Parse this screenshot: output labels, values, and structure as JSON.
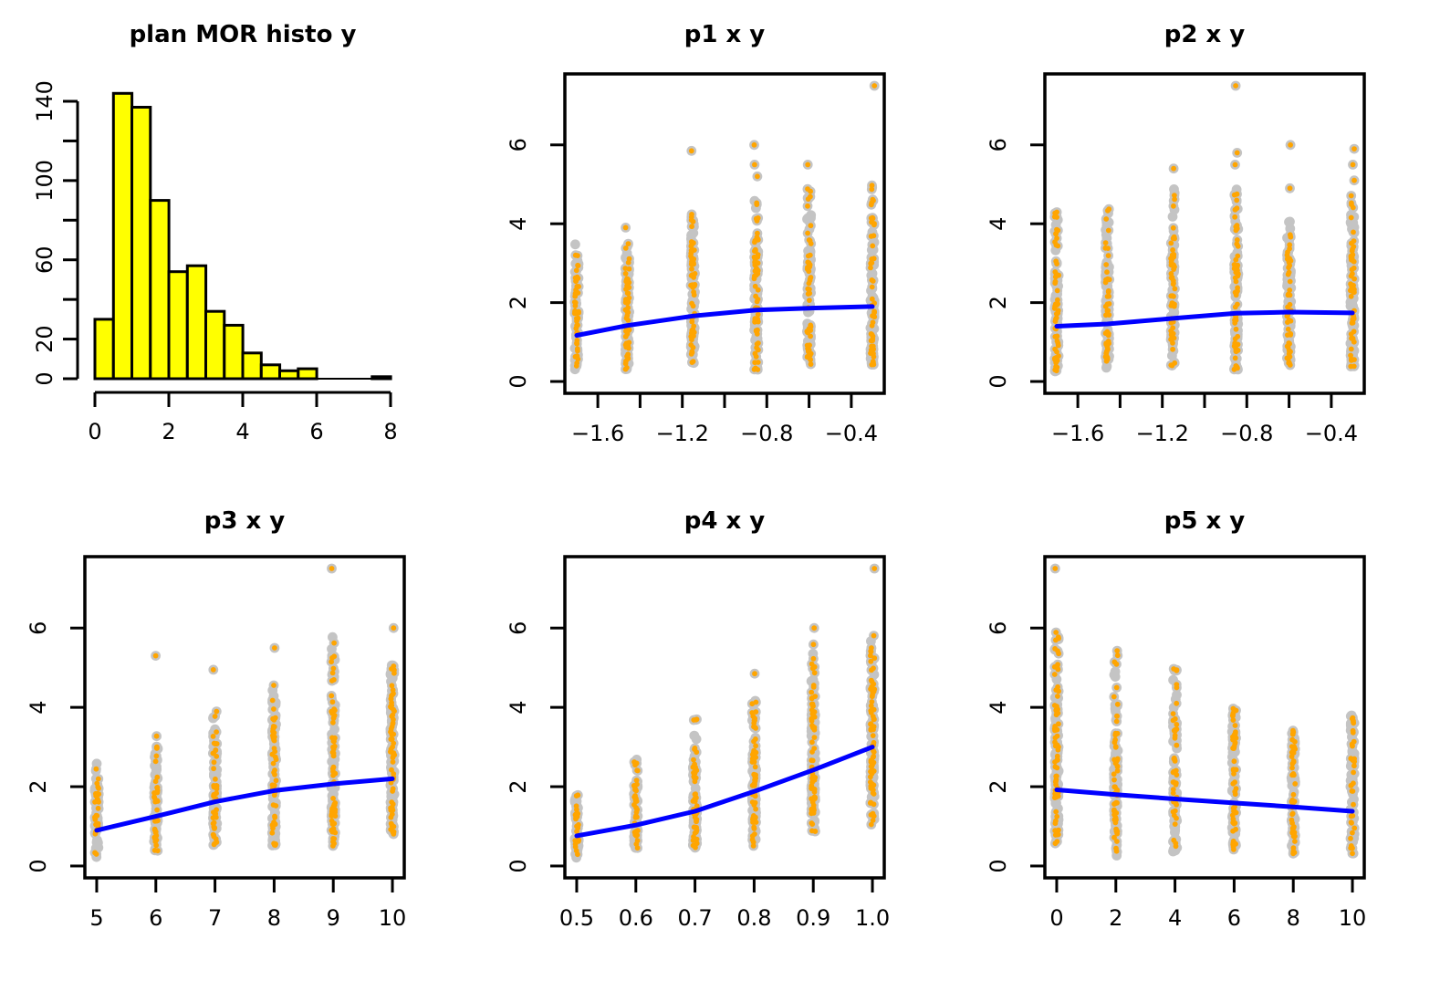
{
  "figure": {
    "title": "R plot grid: histogram and five jitter-strip scatter plots with loess lines",
    "background": "#ffffff",
    "colors": {
      "bar_fill": "#ffff00",
      "bar_border": "#000000",
      "point_outer": "#c4c4c4",
      "point_inner": "#ffa500",
      "trend_line": "#0000ff",
      "axis": "#000000"
    }
  },
  "chart_data": [
    {
      "type": "bar",
      "id": "hist",
      "title": "plan MOR histo y",
      "bin_start": 0,
      "bin_width": 0.5,
      "counts": [
        30,
        144,
        137,
        90,
        54,
        57,
        34,
        27,
        13,
        7,
        4,
        5,
        0,
        0,
        0,
        1
      ],
      "xlim": [
        0,
        8
      ],
      "ylim": [
        0,
        140
      ],
      "grid": false,
      "x_ticks": [
        {
          "v": 0,
          "label": "0"
        },
        {
          "v": 2,
          "label": "2"
        },
        {
          "v": 4,
          "label": "4"
        },
        {
          "v": 6,
          "label": "6"
        },
        {
          "v": 8,
          "label": "8"
        }
      ],
      "y_ticks": [
        {
          "v": 0,
          "label": "0"
        },
        {
          "v": 20,
          "label": "20"
        },
        {
          "v": 40,
          "label": ""
        },
        {
          "v": 60,
          "label": "60"
        },
        {
          "v": 80,
          "label": ""
        },
        {
          "v": 100,
          "label": "100"
        },
        {
          "v": 120,
          "label": ""
        },
        {
          "v": 140,
          "label": "140"
        }
      ]
    },
    {
      "type": "scatter",
      "id": "p1",
      "title": "p1 x y",
      "seed": 11,
      "x_usr": [
        -1.756,
        -0.244
      ],
      "y_usr": [
        -0.3,
        7.8
      ],
      "grid": false,
      "x_ticks": [
        {
          "v": -1.6,
          "label": "−1.6"
        },
        {
          "v": -1.4,
          "label": ""
        },
        {
          "v": -1.2,
          "label": "−1.2"
        },
        {
          "v": -1.0,
          "label": ""
        },
        {
          "v": -0.8,
          "label": "−0.8"
        },
        {
          "v": -0.6,
          "label": ""
        },
        {
          "v": -0.4,
          "label": "−0.4"
        }
      ],
      "y_ticks": [
        {
          "v": 0,
          "label": "0"
        },
        {
          "v": 2,
          "label": "2"
        },
        {
          "v": 4,
          "label": "4"
        },
        {
          "v": 6,
          "label": "6"
        }
      ],
      "strips": [
        {
          "x": -1.7,
          "n": 80,
          "y_min": 0.25,
          "y_dense_max": 2.6,
          "y_max": 3.5,
          "outliers": []
        },
        {
          "x": -1.46,
          "n": 88,
          "y_min": 0.3,
          "y_dense_max": 2.7,
          "y_max": 4.0,
          "outliers": []
        },
        {
          "x": -1.15,
          "n": 108,
          "y_min": 0.45,
          "y_dense_max": 3.1,
          "y_max": 4.25,
          "outliers": [
            5.85
          ]
        },
        {
          "x": -0.85,
          "n": 108,
          "y_min": 0.3,
          "y_dense_max": 3.2,
          "y_max": 4.6,
          "outliers": [
            5.2,
            5.5,
            6.0
          ]
        },
        {
          "x": -0.6,
          "n": 102,
          "y_min": 0.3,
          "y_dense_max": 3.3,
          "y_max": 4.9,
          "outliers": [
            5.5
          ]
        },
        {
          "x": -0.3,
          "n": 105,
          "y_min": 0.4,
          "y_dense_max": 3.4,
          "y_max": 5.3,
          "outliers": [
            7.5
          ]
        }
      ],
      "loess": [
        [
          -1.7,
          1.17
        ],
        [
          -1.46,
          1.42
        ],
        [
          -1.15,
          1.66
        ],
        [
          -0.85,
          1.81
        ],
        [
          -0.6,
          1.86
        ],
        [
          -0.3,
          1.9
        ]
      ]
    },
    {
      "type": "scatter",
      "id": "p2",
      "title": "p2 x y",
      "seed": 22,
      "x_usr": [
        -1.756,
        -0.244
      ],
      "y_usr": [
        -0.3,
        7.8
      ],
      "grid": false,
      "x_ticks": [
        {
          "v": -1.6,
          "label": "−1.6"
        },
        {
          "v": -1.4,
          "label": ""
        },
        {
          "v": -1.2,
          "label": "−1.2"
        },
        {
          "v": -1.0,
          "label": ""
        },
        {
          "v": -0.8,
          "label": "−0.8"
        },
        {
          "v": -0.6,
          "label": ""
        },
        {
          "v": -0.4,
          "label": "−0.4"
        }
      ],
      "y_ticks": [
        {
          "v": 0,
          "label": "0"
        },
        {
          "v": 2,
          "label": "2"
        },
        {
          "v": 4,
          "label": "4"
        },
        {
          "v": 6,
          "label": "6"
        }
      ],
      "strips": [
        {
          "x": -1.7,
          "n": 95,
          "y_min": 0.25,
          "y_dense_max": 3.0,
          "y_max": 4.6,
          "outliers": []
        },
        {
          "x": -1.46,
          "n": 90,
          "y_min": 0.3,
          "y_dense_max": 3.0,
          "y_max": 4.4,
          "outliers": []
        },
        {
          "x": -1.15,
          "n": 100,
          "y_min": 0.35,
          "y_dense_max": 3.2,
          "y_max": 4.95,
          "outliers": [
            5.4
          ]
        },
        {
          "x": -0.85,
          "n": 110,
          "y_min": 0.3,
          "y_dense_max": 3.6,
          "y_max": 4.9,
          "outliers": [
            5.5,
            5.8,
            7.5
          ]
        },
        {
          "x": -0.6,
          "n": 95,
          "y_min": 0.4,
          "y_dense_max": 3.1,
          "y_max": 4.1,
          "outliers": [
            4.9,
            6.0
          ]
        },
        {
          "x": -0.3,
          "n": 105,
          "y_min": 0.35,
          "y_dense_max": 3.4,
          "y_max": 4.75,
          "outliers": [
            5.1,
            5.5,
            5.9
          ]
        }
      ],
      "loess": [
        [
          -1.7,
          1.4
        ],
        [
          -1.46,
          1.46
        ],
        [
          -1.15,
          1.6
        ],
        [
          -0.85,
          1.73
        ],
        [
          -0.6,
          1.76
        ],
        [
          -0.3,
          1.74
        ]
      ]
    },
    {
      "type": "scatter",
      "id": "p3",
      "title": "p3 x y",
      "seed": 33,
      "x_usr": [
        4.8,
        10.2
      ],
      "y_usr": [
        -0.3,
        7.8
      ],
      "grid": false,
      "x_ticks": [
        {
          "v": 5,
          "label": "5"
        },
        {
          "v": 6,
          "label": "6"
        },
        {
          "v": 7,
          "label": "7"
        },
        {
          "v": 8,
          "label": "8"
        },
        {
          "v": 9,
          "label": "9"
        },
        {
          "v": 10,
          "label": "10"
        }
      ],
      "y_ticks": [
        {
          "v": 0,
          "label": "0"
        },
        {
          "v": 2,
          "label": "2"
        },
        {
          "v": 4,
          "label": "4"
        },
        {
          "v": 6,
          "label": "6"
        }
      ],
      "strips": [
        {
          "x": 5,
          "n": 60,
          "y_min": 0.2,
          "y_dense_max": 1.9,
          "y_max": 2.6,
          "outliers": []
        },
        {
          "x": 6,
          "n": 80,
          "y_min": 0.35,
          "y_dense_max": 2.5,
          "y_max": 3.3,
          "outliers": [
            5.3
          ]
        },
        {
          "x": 7,
          "n": 95,
          "y_min": 0.45,
          "y_dense_max": 3.0,
          "y_max": 3.9,
          "outliers": [
            4.95
          ]
        },
        {
          "x": 8,
          "n": 110,
          "y_min": 0.5,
          "y_dense_max": 3.5,
          "y_max": 4.6,
          "outliers": [
            5.5
          ]
        },
        {
          "x": 9,
          "n": 115,
          "y_min": 0.5,
          "y_dense_max": 3.9,
          "y_max": 5.9,
          "outliers": [
            7.5
          ]
        },
        {
          "x": 10,
          "n": 125,
          "y_min": 0.8,
          "y_dense_max": 4.0,
          "y_max": 5.1,
          "outliers": [
            6.0
          ]
        }
      ],
      "loess": [
        [
          5,
          0.9
        ],
        [
          6,
          1.25
        ],
        [
          7,
          1.62
        ],
        [
          8,
          1.9
        ],
        [
          9,
          2.07
        ],
        [
          10,
          2.2
        ]
      ]
    },
    {
      "type": "scatter",
      "id": "p4",
      "title": "p4 x y",
      "seed": 44,
      "x_usr": [
        0.48,
        1.02
      ],
      "y_usr": [
        -0.3,
        7.8
      ],
      "grid": false,
      "x_ticks": [
        {
          "v": 0.5,
          "label": "0.5"
        },
        {
          "v": 0.6,
          "label": "0.6"
        },
        {
          "v": 0.7,
          "label": "0.7"
        },
        {
          "v": 0.8,
          "label": "0.8"
        },
        {
          "v": 0.9,
          "label": "0.9"
        },
        {
          "v": 1.0,
          "label": "1.0"
        }
      ],
      "y_ticks": [
        {
          "v": 0,
          "label": "0"
        },
        {
          "v": 2,
          "label": "2"
        },
        {
          "v": 4,
          "label": "4"
        },
        {
          "v": 6,
          "label": "6"
        }
      ],
      "strips": [
        {
          "x": 0.5,
          "n": 50,
          "y_min": 0.2,
          "y_dense_max": 1.5,
          "y_max": 1.9,
          "outliers": []
        },
        {
          "x": 0.6,
          "n": 70,
          "y_min": 0.4,
          "y_dense_max": 2.0,
          "y_max": 2.7,
          "outliers": []
        },
        {
          "x": 0.7,
          "n": 95,
          "y_min": 0.45,
          "y_dense_max": 2.4,
          "y_max": 3.75,
          "outliers": []
        },
        {
          "x": 0.8,
          "n": 115,
          "y_min": 0.5,
          "y_dense_max": 3.0,
          "y_max": 4.2,
          "outliers": [
            4.85
          ]
        },
        {
          "x": 0.9,
          "n": 125,
          "y_min": 0.8,
          "y_dense_max": 3.9,
          "y_max": 5.6,
          "outliers": [
            6.0
          ]
        },
        {
          "x": 1.0,
          "n": 130,
          "y_min": 1.0,
          "y_dense_max": 4.4,
          "y_max": 5.85,
          "outliers": [
            7.5
          ]
        }
      ],
      "loess": [
        [
          0.5,
          0.76
        ],
        [
          0.6,
          1.03
        ],
        [
          0.7,
          1.38
        ],
        [
          0.8,
          1.88
        ],
        [
          0.9,
          2.42
        ],
        [
          1.0,
          3.0
        ]
      ]
    },
    {
      "type": "scatter",
      "id": "p5",
      "title": "p5 x y",
      "seed": 55,
      "x_usr": [
        -0.4,
        10.4
      ],
      "y_usr": [
        -0.3,
        7.8
      ],
      "grid": false,
      "x_ticks": [
        {
          "v": 0,
          "label": "0"
        },
        {
          "v": 2,
          "label": "2"
        },
        {
          "v": 4,
          "label": "4"
        },
        {
          "v": 6,
          "label": "6"
        },
        {
          "v": 8,
          "label": "8"
        },
        {
          "v": 10,
          "label": "10"
        }
      ],
      "y_ticks": [
        {
          "v": 0,
          "label": "0"
        },
        {
          "v": 2,
          "label": "2"
        },
        {
          "v": 4,
          "label": "4"
        },
        {
          "v": 6,
          "label": "6"
        }
      ],
      "strips": [
        {
          "x": 0,
          "n": 125,
          "y_min": 0.5,
          "y_dense_max": 4.0,
          "y_max": 6.0,
          "outliers": [
            7.5
          ]
        },
        {
          "x": 2,
          "n": 110,
          "y_min": 0.25,
          "y_dense_max": 3.3,
          "y_max": 5.5,
          "outliers": []
        },
        {
          "x": 4,
          "n": 100,
          "y_min": 0.35,
          "y_dense_max": 3.6,
          "y_max": 5.0,
          "outliers": []
        },
        {
          "x": 6,
          "n": 90,
          "y_min": 0.35,
          "y_dense_max": 3.3,
          "y_max": 4.1,
          "outliers": []
        },
        {
          "x": 8,
          "n": 85,
          "y_min": 0.2,
          "y_dense_max": 2.9,
          "y_max": 3.45,
          "outliers": []
        },
        {
          "x": 10,
          "n": 85,
          "y_min": 0.3,
          "y_dense_max": 3.3,
          "y_max": 3.85,
          "outliers": []
        }
      ],
      "loess": [
        [
          0,
          1.92
        ],
        [
          2,
          1.8
        ],
        [
          4,
          1.69
        ],
        [
          6,
          1.59
        ],
        [
          8,
          1.49
        ],
        [
          10,
          1.38
        ]
      ]
    }
  ]
}
